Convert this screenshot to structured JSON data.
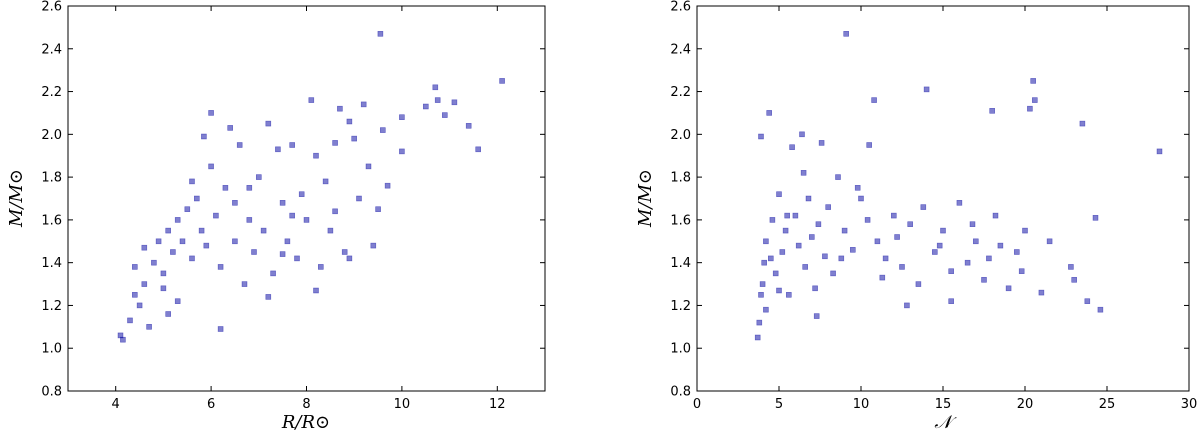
{
  "chart_data": [
    {
      "type": "scatter",
      "xlabel": "R/R⊙",
      "ylabel": "M/M⊙",
      "xlim": [
        3,
        13
      ],
      "ylim": [
        0.8,
        2.6
      ],
      "xticks": [
        4,
        6,
        8,
        10,
        12
      ],
      "yticks": [
        0.8,
        1.0,
        1.2,
        1.4,
        1.6,
        1.8,
        2.0,
        2.2,
        2.4,
        2.6
      ],
      "xtick_labels": [
        "4",
        "6",
        "8",
        "10",
        "12"
      ],
      "ytick_labels": [
        "0.8",
        "1.0",
        "1.2",
        "1.4",
        "1.6",
        "1.8",
        "2.0",
        "2.2",
        "2.4",
        "2.6"
      ],
      "grid": false,
      "marker_color": "#0000a0",
      "points": [
        [
          4.1,
          1.06
        ],
        [
          4.15,
          1.04
        ],
        [
          4.3,
          1.13
        ],
        [
          4.4,
          1.25
        ],
        [
          4.5,
          1.2
        ],
        [
          4.6,
          1.3
        ],
        [
          4.7,
          1.1
        ],
        [
          4.8,
          1.4
        ],
        [
          4.9,
          1.5
        ],
        [
          5.0,
          1.35
        ],
        [
          5.1,
          1.55
        ],
        [
          5.2,
          1.45
        ],
        [
          5.3,
          1.6
        ],
        [
          5.4,
          1.5
        ],
        [
          5.5,
          1.65
        ],
        [
          5.6,
          1.42
        ],
        [
          5.7,
          1.7
        ],
        [
          5.8,
          1.55
        ],
        [
          5.9,
          1.48
        ],
        [
          6.0,
          1.85
        ],
        [
          6.0,
          2.1
        ],
        [
          5.85,
          1.99
        ],
        [
          6.1,
          1.62
        ],
        [
          6.2,
          1.38
        ],
        [
          6.3,
          1.75
        ],
        [
          6.4,
          2.03
        ],
        [
          6.5,
          1.5
        ],
        [
          6.6,
          1.95
        ],
        [
          6.7,
          1.3
        ],
        [
          6.8,
          1.6
        ],
        [
          6.9,
          1.45
        ],
        [
          7.0,
          1.8
        ],
        [
          7.1,
          1.55
        ],
        [
          7.2,
          2.05
        ],
        [
          7.3,
          1.35
        ],
        [
          7.4,
          1.93
        ],
        [
          7.5,
          1.68
        ],
        [
          7.6,
          1.5
        ],
        [
          7.7,
          1.95
        ],
        [
          7.8,
          1.42
        ],
        [
          7.9,
          1.72
        ],
        [
          8.0,
          1.6
        ],
        [
          8.1,
          2.16
        ],
        [
          8.2,
          1.9
        ],
        [
          8.3,
          1.38
        ],
        [
          8.4,
          1.78
        ],
        [
          8.5,
          1.55
        ],
        [
          8.6,
          1.96
        ],
        [
          8.7,
          2.12
        ],
        [
          8.8,
          1.45
        ],
        [
          8.9,
          2.06
        ],
        [
          9.0,
          1.98
        ],
        [
          9.1,
          1.7
        ],
        [
          9.2,
          2.14
        ],
        [
          9.3,
          1.85
        ],
        [
          9.4,
          1.48
        ],
        [
          9.55,
          2.47
        ],
        [
          9.6,
          2.02
        ],
        [
          9.7,
          1.76
        ],
        [
          10.0,
          2.08
        ],
        [
          10.0,
          1.92
        ],
        [
          10.5,
          2.13
        ],
        [
          10.7,
          2.22
        ],
        [
          10.75,
          2.16
        ],
        [
          10.9,
          2.09
        ],
        [
          11.1,
          2.15
        ],
        [
          11.4,
          2.04
        ],
        [
          11.6,
          1.93
        ],
        [
          12.1,
          2.25
        ],
        [
          5.0,
          1.28
        ],
        [
          4.6,
          1.47
        ],
        [
          5.3,
          1.22
        ],
        [
          6.5,
          1.68
        ],
        [
          7.2,
          1.24
        ],
        [
          6.2,
          1.09
        ],
        [
          5.6,
          1.78
        ],
        [
          7.7,
          1.62
        ],
        [
          8.6,
          1.64
        ],
        [
          4.4,
          1.38
        ],
        [
          5.1,
          1.16
        ],
        [
          6.8,
          1.75
        ],
        [
          7.5,
          1.44
        ],
        [
          8.2,
          1.27
        ],
        [
          9.5,
          1.65
        ],
        [
          8.9,
          1.42
        ]
      ]
    },
    {
      "type": "scatter",
      "xlabel": "𝒩",
      "ylabel": "M/M⊙",
      "xlim": [
        0,
        30
      ],
      "ylim": [
        0.8,
        2.6
      ],
      "xticks": [
        0,
        5,
        10,
        15,
        20,
        25,
        30
      ],
      "yticks": [
        0.8,
        1.0,
        1.2,
        1.4,
        1.6,
        1.8,
        2.0,
        2.2,
        2.4,
        2.6
      ],
      "xtick_labels": [
        "0",
        "5",
        "10",
        "15",
        "20",
        "25",
        "30"
      ],
      "ytick_labels": [
        "0.8",
        "1.0",
        "1.2",
        "1.4",
        "1.6",
        "1.8",
        "2.0",
        "2.2",
        "2.4",
        "2.6"
      ],
      "grid": false,
      "marker_color": "#0000a0",
      "points": [
        [
          3.7,
          1.05
        ],
        [
          3.8,
          1.12
        ],
        [
          3.9,
          1.99
        ],
        [
          4.0,
          1.3
        ],
        [
          4.2,
          1.5
        ],
        [
          4.4,
          2.1
        ],
        [
          4.5,
          1.42
        ],
        [
          4.6,
          1.6
        ],
        [
          4.8,
          1.35
        ],
        [
          5.0,
          1.72
        ],
        [
          5.2,
          1.45
        ],
        [
          5.4,
          1.55
        ],
        [
          5.6,
          1.25
        ],
        [
          5.8,
          1.94
        ],
        [
          6.0,
          1.62
        ],
        [
          6.2,
          1.48
        ],
        [
          6.4,
          2.0
        ],
        [
          6.6,
          1.38
        ],
        [
          6.8,
          1.7
        ],
        [
          7.0,
          1.52
        ],
        [
          7.2,
          1.28
        ],
        [
          7.4,
          1.58
        ],
        [
          7.6,
          1.96
        ],
        [
          7.8,
          1.43
        ],
        [
          8.0,
          1.66
        ],
        [
          8.3,
          1.35
        ],
        [
          8.6,
          1.8
        ],
        [
          9.0,
          1.55
        ],
        [
          9.1,
          2.47
        ],
        [
          9.5,
          1.46
        ],
        [
          10.0,
          1.7
        ],
        [
          10.4,
          1.6
        ],
        [
          10.5,
          1.95
        ],
        [
          10.8,
          2.16
        ],
        [
          11.0,
          1.5
        ],
        [
          11.5,
          1.42
        ],
        [
          12.0,
          1.62
        ],
        [
          12.5,
          1.38
        ],
        [
          13.0,
          1.58
        ],
        [
          13.5,
          1.3
        ],
        [
          14.0,
          2.21
        ],
        [
          14.5,
          1.45
        ],
        [
          15.0,
          1.55
        ],
        [
          15.5,
          1.22
        ],
        [
          16.0,
          1.68
        ],
        [
          16.5,
          1.4
        ],
        [
          17.0,
          1.5
        ],
        [
          17.5,
          1.32
        ],
        [
          18.0,
          2.11
        ],
        [
          18.2,
          1.62
        ],
        [
          18.5,
          1.48
        ],
        [
          19.0,
          1.28
        ],
        [
          19.5,
          1.45
        ],
        [
          20.0,
          1.55
        ],
        [
          20.3,
          2.12
        ],
        [
          20.5,
          2.25
        ],
        [
          20.6,
          2.16
        ],
        [
          21.0,
          1.26
        ],
        [
          21.5,
          1.5
        ],
        [
          22.8,
          1.38
        ],
        [
          23.0,
          1.32
        ],
        [
          23.5,
          2.05
        ],
        [
          23.8,
          1.22
        ],
        [
          24.3,
          1.61
        ],
        [
          24.6,
          1.18
        ],
        [
          28.2,
          1.92
        ],
        [
          4.2,
          1.18
        ],
        [
          5.0,
          1.27
        ],
        [
          6.5,
          1.82
        ],
        [
          7.3,
          1.15
        ],
        [
          8.8,
          1.42
        ],
        [
          12.2,
          1.52
        ],
        [
          13.8,
          1.66
        ],
        [
          15.5,
          1.36
        ],
        [
          16.8,
          1.58
        ],
        [
          19.8,
          1.36
        ],
        [
          4.1,
          1.4
        ],
        [
          5.5,
          1.62
        ],
        [
          9.8,
          1.75
        ],
        [
          11.3,
          1.33
        ],
        [
          12.8,
          1.2
        ],
        [
          14.8,
          1.48
        ],
        [
          17.8,
          1.42
        ],
        [
          3.9,
          1.25
        ]
      ]
    }
  ]
}
